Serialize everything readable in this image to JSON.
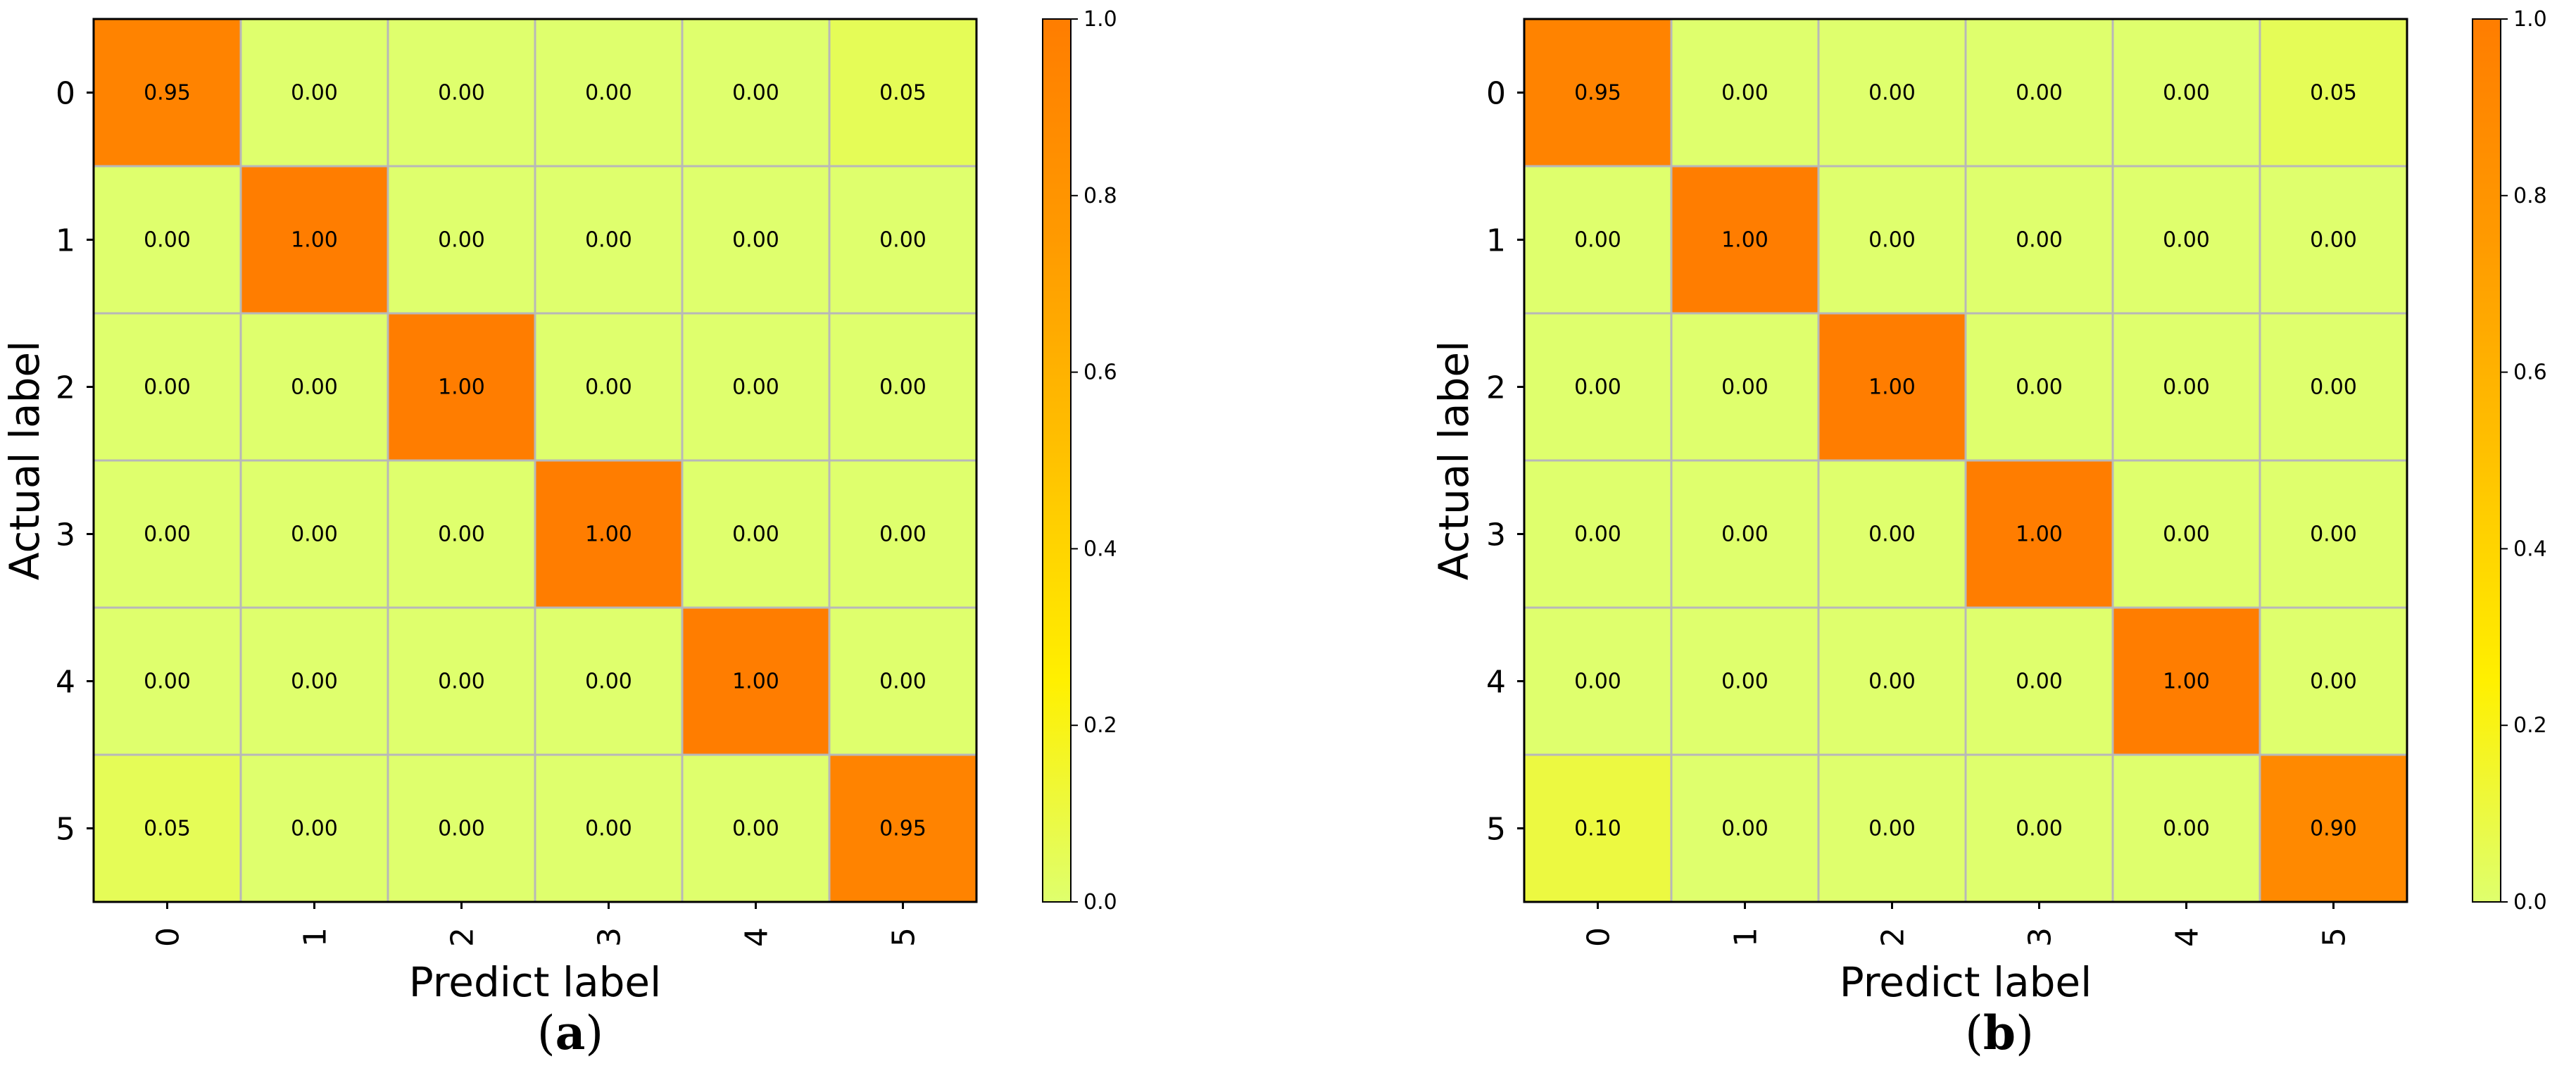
{
  "colors": {
    "colormap": [
      "#dfff6d",
      "#fff000",
      "#ffc200",
      "#ff9a00",
      "#ff7d00"
    ],
    "grid": "#b8b8b8",
    "frame": "#000000"
  },
  "chart_data": [
    {
      "type": "heatmap",
      "panel": "a",
      "caption_paren_open": "(",
      "caption_letter": "a",
      "caption_paren_close": ")",
      "xlabel": "Predict label",
      "ylabel": "Actual label",
      "x_categories": [
        "0",
        "1",
        "2",
        "3",
        "4",
        "5"
      ],
      "y_categories": [
        "0",
        "1",
        "2",
        "3",
        "4",
        "5"
      ],
      "matrix": [
        [
          0.95,
          0.0,
          0.0,
          0.0,
          0.0,
          0.05
        ],
        [
          0.0,
          1.0,
          0.0,
          0.0,
          0.0,
          0.0
        ],
        [
          0.0,
          0.0,
          1.0,
          0.0,
          0.0,
          0.0
        ],
        [
          0.0,
          0.0,
          0.0,
          1.0,
          0.0,
          0.0
        ],
        [
          0.0,
          0.0,
          0.0,
          0.0,
          1.0,
          0.0
        ],
        [
          0.05,
          0.0,
          0.0,
          0.0,
          0.0,
          0.95
        ]
      ],
      "colorbar": {
        "range": [
          0.0,
          1.0
        ],
        "ticks": [
          "0.0",
          "0.2",
          "0.4",
          "0.6",
          "0.8",
          "1.0"
        ]
      }
    },
    {
      "type": "heatmap",
      "panel": "b",
      "caption_paren_open": "(",
      "caption_letter": "b",
      "caption_paren_close": ")",
      "xlabel": "Predict label",
      "ylabel": "Actual label",
      "x_categories": [
        "0",
        "1",
        "2",
        "3",
        "4",
        "5"
      ],
      "y_categories": [
        "0",
        "1",
        "2",
        "3",
        "4",
        "5"
      ],
      "matrix": [
        [
          0.95,
          0.0,
          0.0,
          0.0,
          0.0,
          0.05
        ],
        [
          0.0,
          1.0,
          0.0,
          0.0,
          0.0,
          0.0
        ],
        [
          0.0,
          0.0,
          1.0,
          0.0,
          0.0,
          0.0
        ],
        [
          0.0,
          0.0,
          0.0,
          1.0,
          0.0,
          0.0
        ],
        [
          0.0,
          0.0,
          0.0,
          0.0,
          1.0,
          0.0
        ],
        [
          0.1,
          0.0,
          0.0,
          0.0,
          0.0,
          0.9
        ]
      ],
      "colorbar": {
        "range": [
          0.0,
          1.0
        ],
        "ticks": [
          "0.0",
          "0.2",
          "0.4",
          "0.6",
          "0.8",
          "1.0"
        ]
      }
    }
  ]
}
